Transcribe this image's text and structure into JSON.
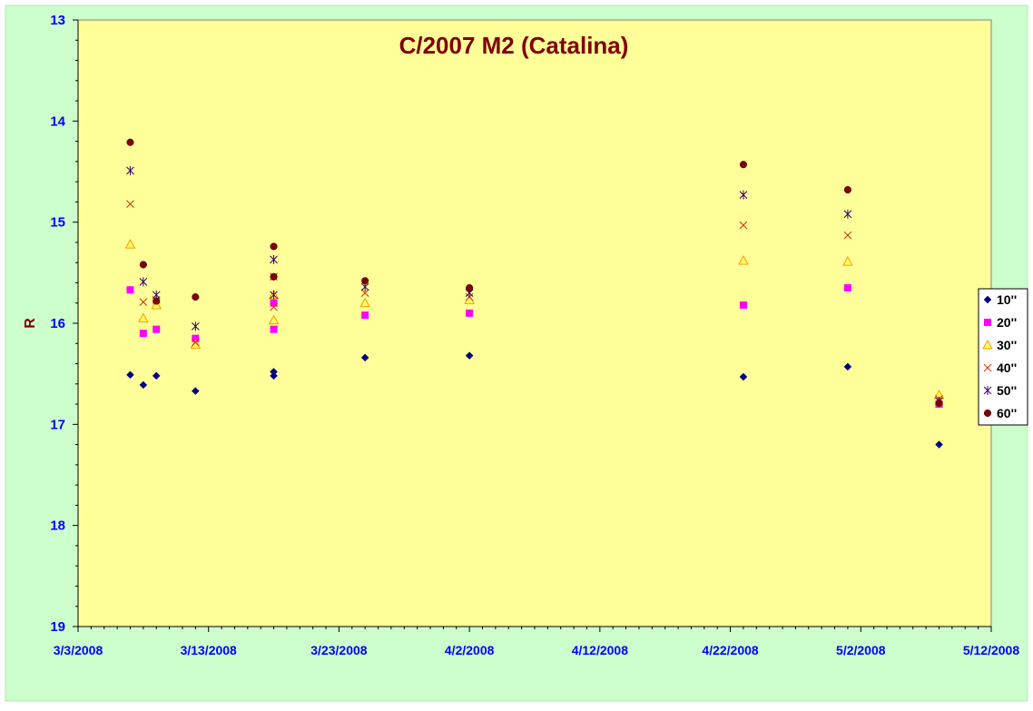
{
  "chart_data": {
    "type": "scatter",
    "title": "C/2007 M2 (Catalina)",
    "xlabel": "",
    "ylabel": "R",
    "x_axis": {
      "type": "date",
      "min": "2008-03-03",
      "max": "2008-05-12",
      "tick_step_days": 10,
      "tick_labels": [
        "3/3/2008",
        "3/13/2008",
        "3/23/2008",
        "4/2/2008",
        "4/12/2008",
        "4/22/2008",
        "5/2/2008",
        "5/12/2008"
      ]
    },
    "y_axis": {
      "min": 13,
      "max": 19,
      "reversed": true,
      "tick_labels": [
        "13",
        "14",
        "15",
        "16",
        "17",
        "18",
        "19"
      ]
    },
    "grid": false,
    "legend": "right",
    "colors": {
      "plot_background": "#ffff99",
      "chart_background": "#ccffcc",
      "title": "#800000",
      "axis_labels": "#0000ff",
      "ylabel": "#800000"
    },
    "series": [
      {
        "name": "10''",
        "marker": "diamond",
        "color": "#000080",
        "points": [
          [
            "2008-03-07",
            16.51
          ],
          [
            "2008-03-08",
            16.61
          ],
          [
            "2008-03-09",
            16.52
          ],
          [
            "2008-03-12",
            16.67
          ],
          [
            "2008-03-18",
            16.48
          ],
          [
            "2008-03-18",
            16.52
          ],
          [
            "2008-03-25",
            16.34
          ],
          [
            "2008-04-02",
            16.32
          ],
          [
            "2008-04-23",
            16.53
          ],
          [
            "2008-05-01",
            16.43
          ],
          [
            "2008-05-08",
            17.2
          ]
        ]
      },
      {
        "name": "20''",
        "marker": "square",
        "color": "#ff00ff",
        "points": [
          [
            "2008-03-07",
            15.67
          ],
          [
            "2008-03-08",
            16.1
          ],
          [
            "2008-03-09",
            16.06
          ],
          [
            "2008-03-12",
            16.15
          ],
          [
            "2008-03-18",
            15.8
          ],
          [
            "2008-03-18",
            16.06
          ],
          [
            "2008-03-25",
            15.92
          ],
          [
            "2008-04-02",
            15.9
          ],
          [
            "2008-04-23",
            15.82
          ],
          [
            "2008-05-01",
            15.65
          ],
          [
            "2008-05-08",
            16.8
          ]
        ]
      },
      {
        "name": "30''",
        "marker": "triangle",
        "color": "#ff9900",
        "points": [
          [
            "2008-03-07",
            15.22
          ],
          [
            "2008-03-08",
            15.95
          ],
          [
            "2008-03-09",
            15.82
          ],
          [
            "2008-03-12",
            16.21
          ],
          [
            "2008-03-18",
            15.72
          ],
          [
            "2008-03-18",
            15.97
          ],
          [
            "2008-03-25",
            15.8
          ],
          [
            "2008-04-02",
            15.77
          ],
          [
            "2008-04-23",
            15.38
          ],
          [
            "2008-05-01",
            15.39
          ],
          [
            "2008-05-08",
            16.71
          ]
        ]
      },
      {
        "name": "40''",
        "marker": "x",
        "color": "#cc3300",
        "points": [
          [
            "2008-03-07",
            14.82
          ],
          [
            "2008-03-08",
            15.79
          ],
          [
            "2008-03-09",
            15.77
          ],
          [
            "2008-03-12",
            16.19
          ],
          [
            "2008-03-18",
            15.54
          ],
          [
            "2008-03-18",
            15.84
          ],
          [
            "2008-03-25",
            15.7
          ],
          [
            "2008-04-02",
            15.74
          ],
          [
            "2008-04-23",
            15.03
          ],
          [
            "2008-05-01",
            15.13
          ],
          [
            "2008-05-08",
            16.75
          ]
        ]
      },
      {
        "name": "50''",
        "marker": "star",
        "color": "#330066",
        "points": [
          [
            "2008-03-07",
            14.49
          ],
          [
            "2008-03-08",
            15.59
          ],
          [
            "2008-03-09",
            15.72
          ],
          [
            "2008-03-12",
            16.03
          ],
          [
            "2008-03-18",
            15.37
          ],
          [
            "2008-03-18",
            15.72
          ],
          [
            "2008-03-25",
            15.64
          ],
          [
            "2008-04-02",
            15.7
          ],
          [
            "2008-04-23",
            14.73
          ],
          [
            "2008-05-01",
            14.92
          ],
          [
            "2008-05-08",
            16.77
          ]
        ]
      },
      {
        "name": "60''",
        "marker": "circle",
        "color": "#800000",
        "points": [
          [
            "2008-03-07",
            14.21
          ],
          [
            "2008-03-08",
            15.42
          ],
          [
            "2008-03-09",
            15.78
          ],
          [
            "2008-03-12",
            15.74
          ],
          [
            "2008-03-18",
            15.24
          ],
          [
            "2008-03-18",
            15.54
          ],
          [
            "2008-03-25",
            15.58
          ],
          [
            "2008-04-02",
            15.65
          ],
          [
            "2008-04-23",
            14.43
          ],
          [
            "2008-05-01",
            14.68
          ],
          [
            "2008-05-08",
            16.79
          ]
        ]
      }
    ]
  }
}
